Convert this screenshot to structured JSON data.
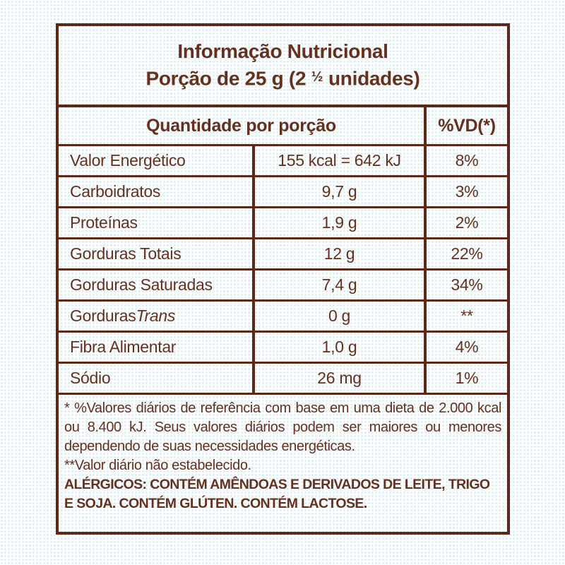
{
  "colors": {
    "ink": "#5E2817",
    "text": "#65301E",
    "paper_dot": "#A5CDE4"
  },
  "label": {
    "title": "Informação Nutricional",
    "serving_prefix": "Porção de 25 g (2 ",
    "serving_fraction": "½",
    "serving_suffix": " unidades)",
    "table": {
      "header_quantity": "Quantidade por porção",
      "header_dv": "%VD(*)",
      "rows": [
        {
          "name": "Valor Energético",
          "value": "155 kcal = 642 kJ",
          "dv": "8%"
        },
        {
          "name": "Carboidratos",
          "value": "9,7 g",
          "dv": "3%"
        },
        {
          "name": "Proteínas",
          "value": "1,9 g",
          "dv": "2%"
        },
        {
          "name": "Gorduras Totais",
          "value": "12 g",
          "dv": "22%"
        },
        {
          "name": "Gorduras Saturadas",
          "value": "7,4 g",
          "dv": "34%"
        },
        {
          "name": "Gorduras",
          "name_italic": "Trans",
          "value": "0 g",
          "dv": "**"
        },
        {
          "name": "Fibra Alimentar",
          "value": "1,0 g",
          "dv": "4%"
        },
        {
          "name": "Sódio",
          "value": "26 mg",
          "dv": "1%"
        }
      ]
    },
    "footnotes": {
      "daily_values": "* %Valores diários de referência com base em uma dieta de 2.000 kcal ou 8.400 kJ. Seus valores diários podem ser maiores ou menores dependendo de suas necessidades energéticas.",
      "not_established": "**Valor diário não estabelecido.",
      "allergens": "ALÉRGICOS: CONTÉM AMÊNDOAS E DERIVADOS DE LEITE, TRIGO E SOJA. CONTÉM GLÚTEN. CONTÉM LACTOSE."
    }
  }
}
